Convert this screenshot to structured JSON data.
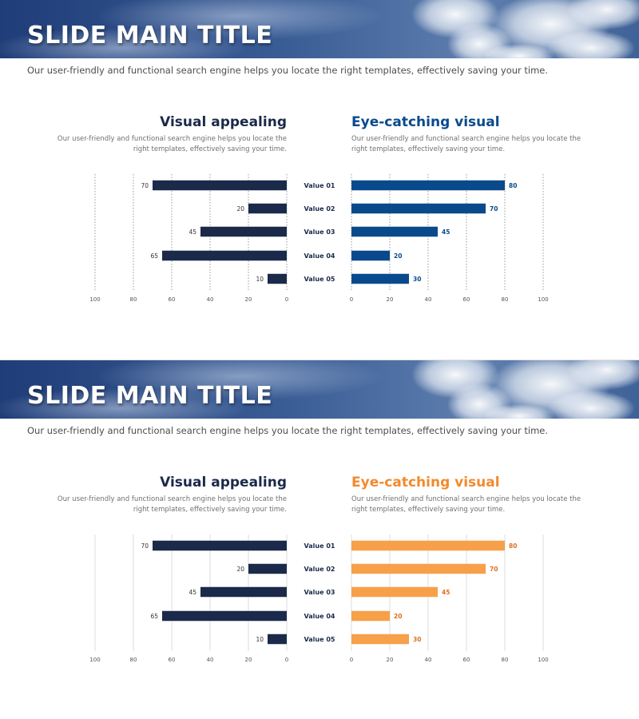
{
  "slides": [
    {
      "title": "SLIDE MAIN TITLE",
      "subtitle": "Our user-friendly and functional search engine helps you locate the right templates, effectively  saving your time.",
      "left_panel": {
        "title": "Visual appealing",
        "description": "Our user-friendly and functional search engine helps you locate the right templates, effectively saving your time."
      },
      "right_panel": {
        "title": "Eye-catching visual",
        "title_color": "#0a4a8c",
        "description": "Our user-friendly and functional search engine helps you locate the right templates, effectively saving your time."
      },
      "colors": {
        "left_bar": "#1b2a4a",
        "right_bar": "#0a4a8c",
        "right_label": "#0a4a8c"
      }
    },
    {
      "title": "SLIDE MAIN TITLE",
      "subtitle": "Our user-friendly and functional search engine helps you locate the right templates, effectively saving your time.",
      "left_panel": {
        "title": "Visual appealing",
        "description": "Our user-friendly and functional search engine helps you locate the right templates, effectively saving your time."
      },
      "right_panel": {
        "title": "Eye-catching visual",
        "title_color": "#f28a2e",
        "description": "Our user-friendly and functional search engine helps you locate the right templates, effectively saving your time."
      },
      "colors": {
        "left_bar": "#1b2a4a",
        "right_bar": "#f7a04a",
        "right_label": "#e0701c"
      }
    }
  ],
  "chart_data": [
    {
      "type": "bar",
      "orientation": "horizontal",
      "title": "Visual appealing",
      "categories": [
        "Value 01",
        "Value 02",
        "Value 03",
        "Value 04",
        "Value 05"
      ],
      "values": [
        70,
        20,
        45,
        65,
        10
      ],
      "xlim": [
        0,
        100
      ],
      "xticks": [
        100,
        80,
        60,
        40,
        20,
        0
      ],
      "direction": "right-to-left",
      "grid": true,
      "bar_color": "#1b2a4a"
    },
    {
      "type": "bar",
      "orientation": "horizontal",
      "title": "Eye-catching visual",
      "categories": [
        "Value 01",
        "Value 02",
        "Value 03",
        "Value 04",
        "Value 05"
      ],
      "values": [
        80,
        70,
        45,
        20,
        30
      ],
      "xlim": [
        0,
        100
      ],
      "xticks": [
        0,
        20,
        40,
        60,
        80,
        100
      ],
      "direction": "left-to-right",
      "grid": true,
      "bar_color": "#0a4a8c"
    },
    {
      "type": "bar",
      "orientation": "horizontal",
      "title": "Visual appealing",
      "categories": [
        "Value 01",
        "Value 02",
        "Value 03",
        "Value 04",
        "Value 05"
      ],
      "values": [
        70,
        20,
        45,
        65,
        10
      ],
      "xlim": [
        0,
        100
      ],
      "xticks": [
        100,
        80,
        60,
        40,
        20,
        0
      ],
      "direction": "right-to-left",
      "grid": true,
      "bar_color": "#1b2a4a"
    },
    {
      "type": "bar",
      "orientation": "horizontal",
      "title": "Eye-catching visual",
      "categories": [
        "Value 01",
        "Value 02",
        "Value 03",
        "Value 04",
        "Value 05"
      ],
      "values": [
        80,
        70,
        45,
        20,
        30
      ],
      "xlim": [
        0,
        100
      ],
      "xticks": [
        0,
        20,
        40,
        60,
        80,
        100
      ],
      "direction": "left-to-right",
      "grid": true,
      "bar_color": "#f7a04a"
    }
  ]
}
